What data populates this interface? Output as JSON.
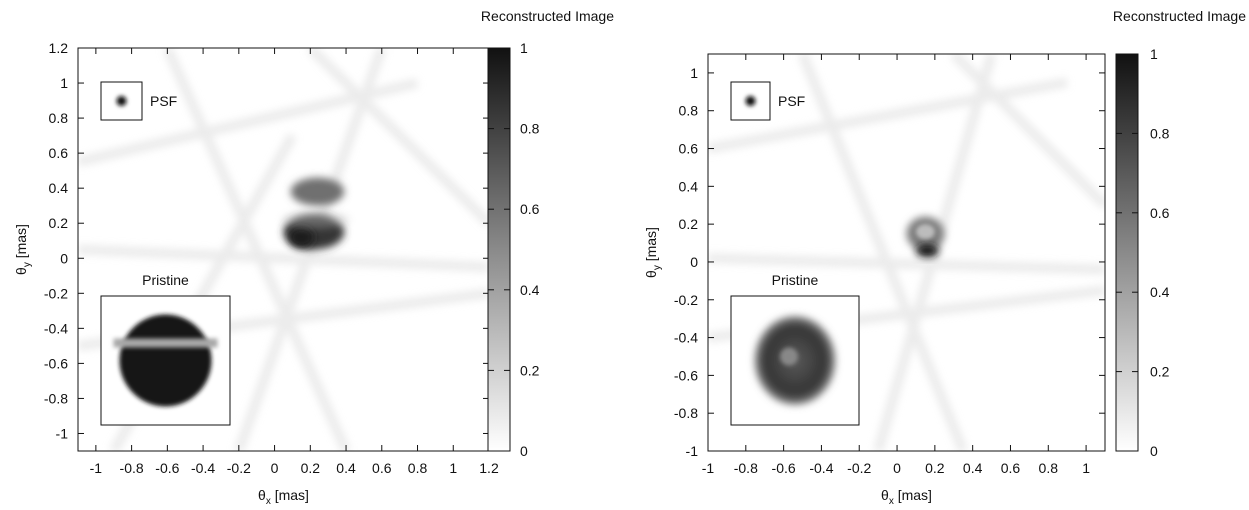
{
  "chart_data": [
    {
      "type": "heatmap",
      "title": "Reconstructed Image",
      "xlabel_sym": "θ",
      "xlabel_sub": "x",
      "xlabel_unit": " [mas]",
      "ylabel_sym": "θ",
      "ylabel_sub": "y",
      "ylabel_unit": " [mas]",
      "xlim": [
        -1.1,
        1.2
      ],
      "ylim": [
        -1.1,
        1.2
      ],
      "xticks": [
        -1,
        -0.8,
        -0.6,
        -0.4,
        -0.2,
        0,
        0.2,
        0.4,
        0.6,
        0.8,
        1,
        1.2
      ],
      "yticks": [
        -1,
        -0.8,
        -0.6,
        -0.4,
        -0.2,
        0,
        0.2,
        0.4,
        0.6,
        0.8,
        1,
        1.2
      ],
      "colorbar": {
        "min": 0,
        "max": 1,
        "ticks": [
          0,
          0.2,
          0.4,
          0.6,
          0.8,
          1
        ]
      },
      "colormap": [
        "#ffffff",
        "#111111"
      ],
      "psf_label": "PSF",
      "inset_label": "Pristine",
      "pristine": "disk split by a horizontal gap (two dark caps)",
      "features": [
        {
          "name": "upper-lobe",
          "x": 0.24,
          "y": 0.38,
          "rx": 0.15,
          "ry": 0.08,
          "intensity": 0.6
        },
        {
          "name": "lower-lobe",
          "x": 0.22,
          "y": 0.15,
          "rx": 0.17,
          "ry": 0.1,
          "intensity": 0.85
        },
        {
          "name": "dark-core",
          "x": 0.15,
          "y": 0.12,
          "rx": 0.07,
          "ry": 0.06,
          "intensity": 0.95
        }
      ]
    },
    {
      "type": "heatmap",
      "title": "Reconstructed Image",
      "xlabel_sym": "θ",
      "xlabel_sub": "x",
      "xlabel_unit": " [mas]",
      "ylabel_sym": "θ",
      "ylabel_sub": "y",
      "ylabel_unit": " [mas]",
      "xlim": [
        -1,
        1.1
      ],
      "ylim": [
        -1,
        1.1
      ],
      "xticks": [
        -1,
        -0.8,
        -0.6,
        -0.4,
        -0.2,
        0,
        0.2,
        0.4,
        0.6,
        0.8,
        1
      ],
      "yticks": [
        -1,
        -0.8,
        -0.6,
        -0.4,
        -0.2,
        0,
        0.2,
        0.4,
        0.6,
        0.8,
        1
      ],
      "colorbar": {
        "min": 0,
        "max": 1,
        "ticks": [
          0,
          0.2,
          0.4,
          0.6,
          0.8,
          1
        ]
      },
      "colormap": [
        "#ffffff",
        "#111111"
      ],
      "psf_label": "PSF",
      "inset_label": "Pristine",
      "pristine": "limb-darkened disk with bright spot",
      "features": [
        {
          "name": "ring",
          "x": 0.15,
          "y": 0.15,
          "rx": 0.1,
          "ry": 0.09,
          "intensity": 0.55
        },
        {
          "name": "dark-core",
          "x": 0.16,
          "y": 0.06,
          "rx": 0.06,
          "ry": 0.035,
          "intensity": 0.97
        }
      ]
    }
  ]
}
